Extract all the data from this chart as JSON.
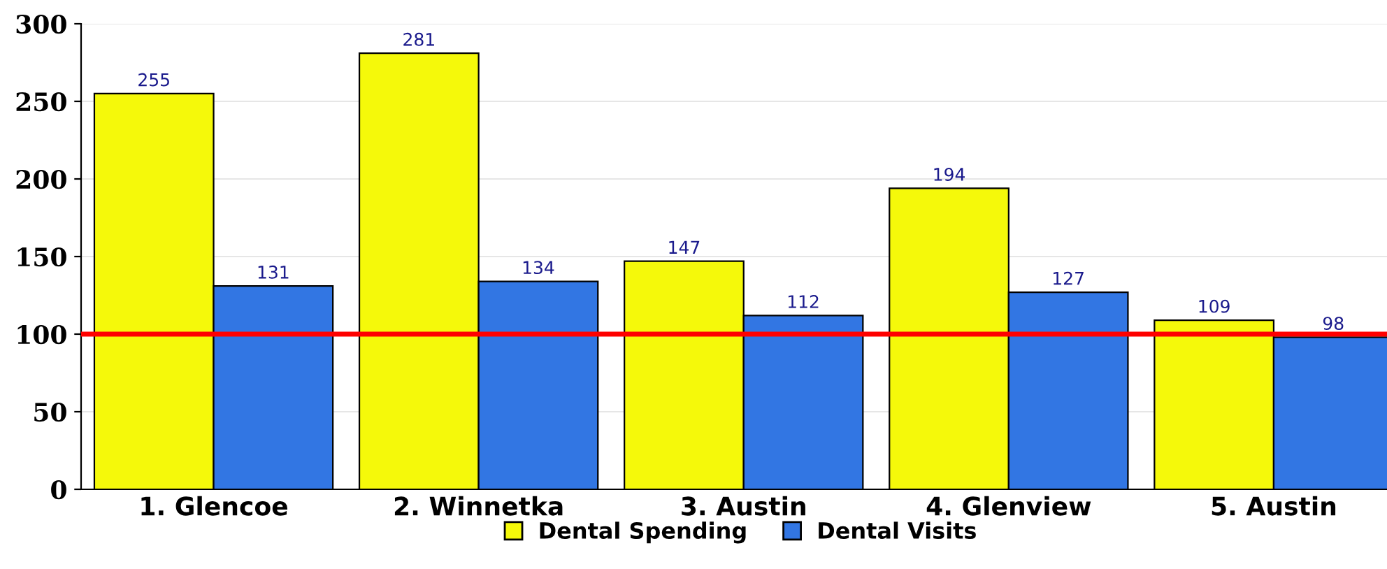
{
  "chart_data": {
    "type": "bar",
    "categories": [
      "1. Glencoe",
      "2. Winnetka",
      "3. Austin",
      "4. Glenview",
      "5. Austin"
    ],
    "series": [
      {
        "name": "Dental Spending",
        "color": "#f5f90a",
        "values": [
          255,
          281,
          147,
          194,
          109
        ]
      },
      {
        "name": "Dental Visits",
        "color": "#3276e3",
        "values": [
          131,
          134,
          112,
          127,
          98
        ]
      }
    ],
    "ylim": [
      0,
      300
    ],
    "yticks": [
      0,
      50,
      100,
      150,
      200,
      250,
      300
    ],
    "grid": "y",
    "legend": "bottom",
    "data_labels": true,
    "ref_lines": [
      {
        "axis": "y",
        "value": 100,
        "color": "#ff0000"
      }
    ]
  }
}
